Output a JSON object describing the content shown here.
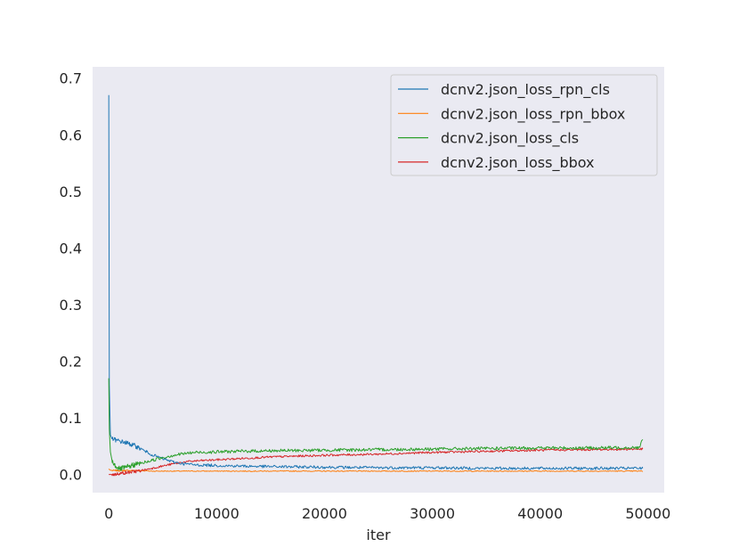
{
  "chart_data": {
    "type": "line",
    "title": "",
    "xlabel": "iter",
    "ylabel": "",
    "xlim": [
      -1500,
      51500
    ],
    "ylim": [
      -0.032,
      0.72
    ],
    "xticks": [
      0,
      10000,
      20000,
      30000,
      40000,
      50000
    ],
    "xtick_labels": [
      "0",
      "10000",
      "20000",
      "30000",
      "40000",
      "50000"
    ],
    "yticks": [
      0.0,
      0.1,
      0.2,
      0.3,
      0.4,
      0.5,
      0.6,
      0.7
    ],
    "ytick_labels": [
      "0.0",
      "0.1",
      "0.2",
      "0.3",
      "0.4",
      "0.5",
      "0.6",
      "0.7"
    ],
    "grid": false,
    "legend_position": "upper right",
    "colors": {
      "background": "#eaeaf2",
      "blue": "#1f77b4",
      "orange": "#ff7f0e",
      "green": "#2ca02c",
      "red": "#d62728"
    },
    "series": [
      {
        "name": "dcnv2.json_loss_rpn_cls",
        "color": "#1f77b4",
        "x": [
          0,
          50,
          150,
          300,
          500,
          800,
          1200,
          1800,
          2500,
          3000,
          3500,
          4000,
          5000,
          6000,
          7000,
          8000,
          10000,
          12000,
          15000,
          20000,
          25000,
          30000,
          35000,
          40000,
          45000,
          49500
        ],
        "y": [
          0.67,
          0.16,
          0.07,
          0.063,
          0.062,
          0.06,
          0.058,
          0.055,
          0.05,
          0.045,
          0.04,
          0.035,
          0.028,
          0.022,
          0.019,
          0.017,
          0.016,
          0.015,
          0.014,
          0.013,
          0.012,
          0.012,
          0.011,
          0.011,
          0.011,
          0.011
        ]
      },
      {
        "name": "dcnv2.json_loss_rpn_bbox",
        "color": "#ff7f0e",
        "x": [
          0,
          100,
          300,
          600,
          1000,
          2000,
          3000,
          4000,
          5000,
          7000,
          10000,
          15000,
          20000,
          30000,
          40000,
          49500
        ],
        "y": [
          0.01,
          0.008,
          0.007,
          0.007,
          0.007,
          0.007,
          0.007,
          0.006,
          0.006,
          0.006,
          0.006,
          0.006,
          0.006,
          0.006,
          0.006,
          0.006
        ]
      },
      {
        "name": "dcnv2.json_loss_cls",
        "color": "#2ca02c",
        "x": [
          0,
          50,
          150,
          300,
          500,
          800,
          1000,
          1500,
          2000,
          2500,
          3000,
          4000,
          5000,
          6000,
          7000,
          8000,
          10000,
          12000,
          15000,
          20000,
          25000,
          30000,
          35000,
          40000,
          45000,
          49200,
          49500
        ],
        "y": [
          0.17,
          0.08,
          0.04,
          0.025,
          0.018,
          0.012,
          0.01,
          0.012,
          0.015,
          0.018,
          0.02,
          0.025,
          0.03,
          0.034,
          0.037,
          0.039,
          0.04,
          0.041,
          0.042,
          0.043,
          0.044,
          0.045,
          0.046,
          0.047,
          0.047,
          0.048,
          0.062
        ]
      },
      {
        "name": "dcnv2.json_loss_bbox",
        "color": "#d62728",
        "x": [
          0,
          500,
          1000,
          2000,
          3000,
          4000,
          5000,
          6000,
          7000,
          8000,
          10000,
          12000,
          15000,
          20000,
          25000,
          30000,
          35000,
          40000,
          45000,
          49500
        ],
        "y": [
          0.0,
          0.0,
          0.002,
          0.004,
          0.007,
          0.011,
          0.015,
          0.019,
          0.022,
          0.024,
          0.026,
          0.028,
          0.031,
          0.034,
          0.036,
          0.039,
          0.041,
          0.043,
          0.044,
          0.045
        ]
      }
    ]
  }
}
